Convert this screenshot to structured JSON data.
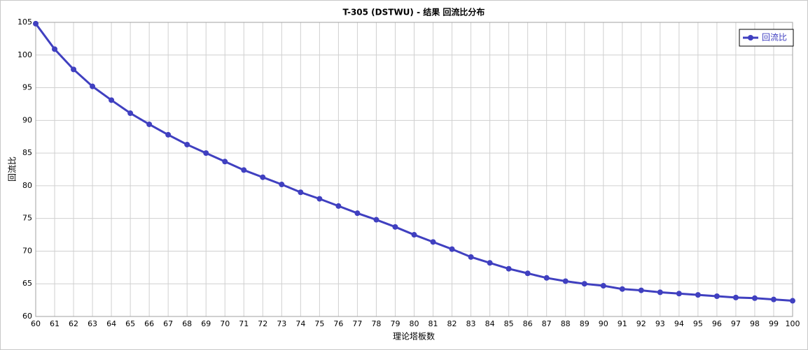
{
  "chart_data": {
    "type": "line",
    "title": "T-305 (DSTWU) - 结果 回流比分布",
    "xlabel": "理论塔板数",
    "ylabel": "回流比",
    "x": [
      60,
      61,
      62,
      63,
      64,
      65,
      66,
      67,
      68,
      69,
      70,
      71,
      72,
      73,
      74,
      75,
      76,
      77,
      78,
      79,
      80,
      81,
      82,
      83,
      84,
      85,
      86,
      87,
      88,
      89,
      90,
      91,
      92,
      93,
      94,
      95,
      96,
      97,
      98,
      99,
      100
    ],
    "series": [
      {
        "name": "回流比",
        "color": "#4040c0",
        "values": [
          104.8,
          100.9,
          97.8,
          95.2,
          93.1,
          91.1,
          89.4,
          87.8,
          86.3,
          85.0,
          83.7,
          82.4,
          81.3,
          80.2,
          79.0,
          78.0,
          76.9,
          75.8,
          74.8,
          73.7,
          72.5,
          71.4,
          70.3,
          69.1,
          68.2,
          67.3,
          66.6,
          65.9,
          65.4,
          65.0,
          64.7,
          64.2,
          64.0,
          63.7,
          63.5,
          63.3,
          63.1,
          62.9,
          62.8,
          62.6,
          62.4
        ]
      }
    ],
    "xlim": [
      60,
      100
    ],
    "xticks": [
      60,
      61,
      62,
      63,
      64,
      65,
      66,
      67,
      68,
      69,
      70,
      71,
      72,
      73,
      74,
      75,
      76,
      77,
      78,
      79,
      80,
      81,
      82,
      83,
      84,
      85,
      86,
      87,
      88,
      89,
      90,
      91,
      92,
      93,
      94,
      95,
      96,
      97,
      98,
      99,
      100
    ],
    "ylim": [
      60,
      105
    ],
    "yticks": [
      60,
      65,
      70,
      75,
      80,
      85,
      90,
      95,
      100,
      105
    ],
    "grid": true,
    "legend": "top-right"
  }
}
